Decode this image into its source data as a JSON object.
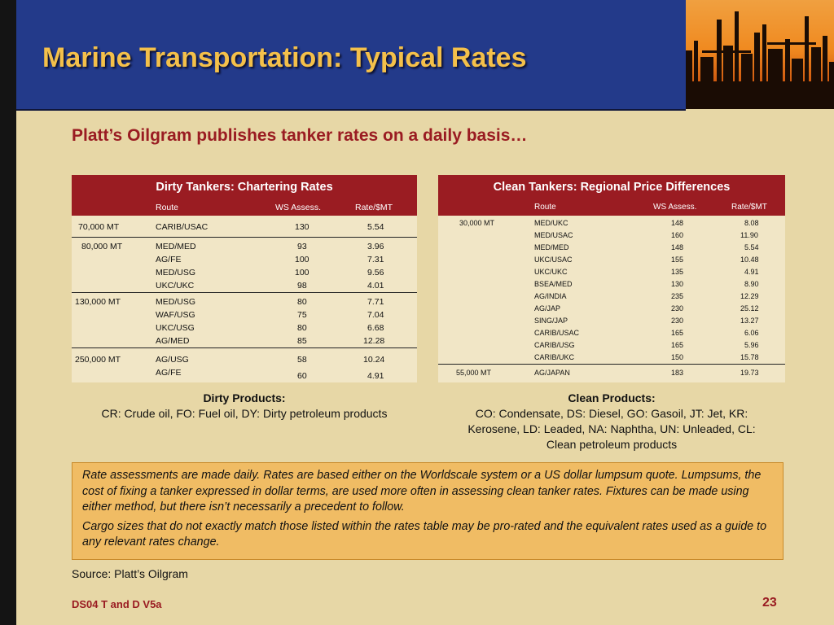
{
  "title": "Marine Transportation:  Typical Rates",
  "subtitle": "Platt’s Oilgram publishes tanker rates on a daily basis…",
  "dirty_table": {
    "title": "Dirty Tankers:  Chartering Rates",
    "headers": {
      "route": "Route",
      "ws": "WS Assess.",
      "rate": "Rate/$MT"
    },
    "groups": [
      {
        "size": "70,000 MT",
        "rows": [
          {
            "route": "CARIB/USAC",
            "ws": "130",
            "rate": "5.54"
          }
        ]
      },
      {
        "size": "80,000 MT",
        "rows": [
          {
            "route": "MED/MED",
            "ws": "93",
            "rate": "3.96"
          },
          {
            "route": "AG/FE",
            "ws": "100",
            "rate": "7.31"
          },
          {
            "route": "MED/USG",
            "ws": "100",
            "rate": "9.56"
          },
          {
            "route": "UKC/UKC",
            "ws": "98",
            "rate": "4.01"
          }
        ]
      },
      {
        "size": "130,000 MT",
        "rows": [
          {
            "route": "MED/USG",
            "ws": "80",
            "rate": "7.71"
          },
          {
            "route": "WAF/USG",
            "ws": "75",
            "rate": "7.04"
          },
          {
            "route": "UKC/USG",
            "ws": "80",
            "rate": "6.68"
          },
          {
            "route": "AG/MED",
            "ws": "85",
            "rate": "12.28"
          }
        ]
      },
      {
        "size": "250,000 MT",
        "rows": [
          {
            "route": "AG/USG",
            "ws": "58",
            "rate": "10.24"
          },
          {
            "route": "AG/FE",
            "ws": "60",
            "rate": "4.91"
          }
        ]
      }
    ]
  },
  "clean_table": {
    "title": "Clean Tankers:  Regional Price Differences",
    "headers": {
      "route": "Route",
      "ws": "WS Assess.",
      "rate": "Rate/$MT"
    },
    "groups": [
      {
        "size": "30,000 MT",
        "rows": [
          {
            "route": "MED/UKC",
            "ws": "148",
            "rate": "8.08"
          },
          {
            "route": "MED/USAC",
            "ws": "160",
            "rate": "11.90"
          },
          {
            "route": "MED/MED",
            "ws": "148",
            "rate": "5.54"
          },
          {
            "route": "UKC/USAC",
            "ws": "155",
            "rate": "10.48"
          },
          {
            "route": "UKC/UKC",
            "ws": "135",
            "rate": "4.91"
          },
          {
            "route": "BSEA/MED",
            "ws": "130",
            "rate": "8.90"
          },
          {
            "route": "AG/INDIA",
            "ws": "235",
            "rate": "12.29"
          },
          {
            "route": "AG/JAP",
            "ws": "230",
            "rate": "25.12"
          },
          {
            "route": "SING/JAP",
            "ws": "230",
            "rate": "13.27"
          },
          {
            "route": "CARIB/USAC",
            "ws": "165",
            "rate": "6.06"
          },
          {
            "route": "CARIB/USG",
            "ws": "165",
            "rate": "5.96"
          },
          {
            "route": "CARIB/UKC",
            "ws": "150",
            "rate": "15.78"
          }
        ]
      },
      {
        "size": "55,000 MT",
        "rows": [
          {
            "route": "AG/JAPAN",
            "ws": "183",
            "rate": "19.73"
          }
        ]
      }
    ]
  },
  "dirty_products": {
    "heading": "Dirty Products:",
    "text": "CR: Crude oil, FO: Fuel oil, DY: Dirty petroleum products"
  },
  "clean_products": {
    "heading": "Clean Products:",
    "line1": "CO: Condensate, DS: Diesel, GO: Gasoil, JT: Jet, KR:",
    "line2": "Kerosene, LD: Leaded, NA: Naphtha, UN: Unleaded, CL:",
    "line3": "Clean petroleum products"
  },
  "info_box": {
    "paragraph1": "Rate assessments are made daily. Rates are based either on the Worldscale system or a US dollar lumpsum quote. Lumpsums, the cost of fixing a tanker expressed in dollar terms, are used more often in assessing clean tanker rates. Fixtures can be made using either method, but there isn’t necessarily a precedent to follow.",
    "paragraph2": "Cargo sizes that do not exactly match those listed within the rates table may be pro-rated and the equivalent rates used as a guide to any relevant rates change."
  },
  "source": "Source:  Platt’s Oilgram",
  "footer": "DS04 T and D V5a",
  "page_number": "23",
  "colors": {
    "header_blue": "#233a8a",
    "title_gold": "#f4c04a",
    "accent_red": "#9a1c22",
    "background_tan": "#e7d7a6",
    "info_orange": "#f0bc64"
  },
  "image": {
    "name": "refinery-silhouette-photo"
  }
}
